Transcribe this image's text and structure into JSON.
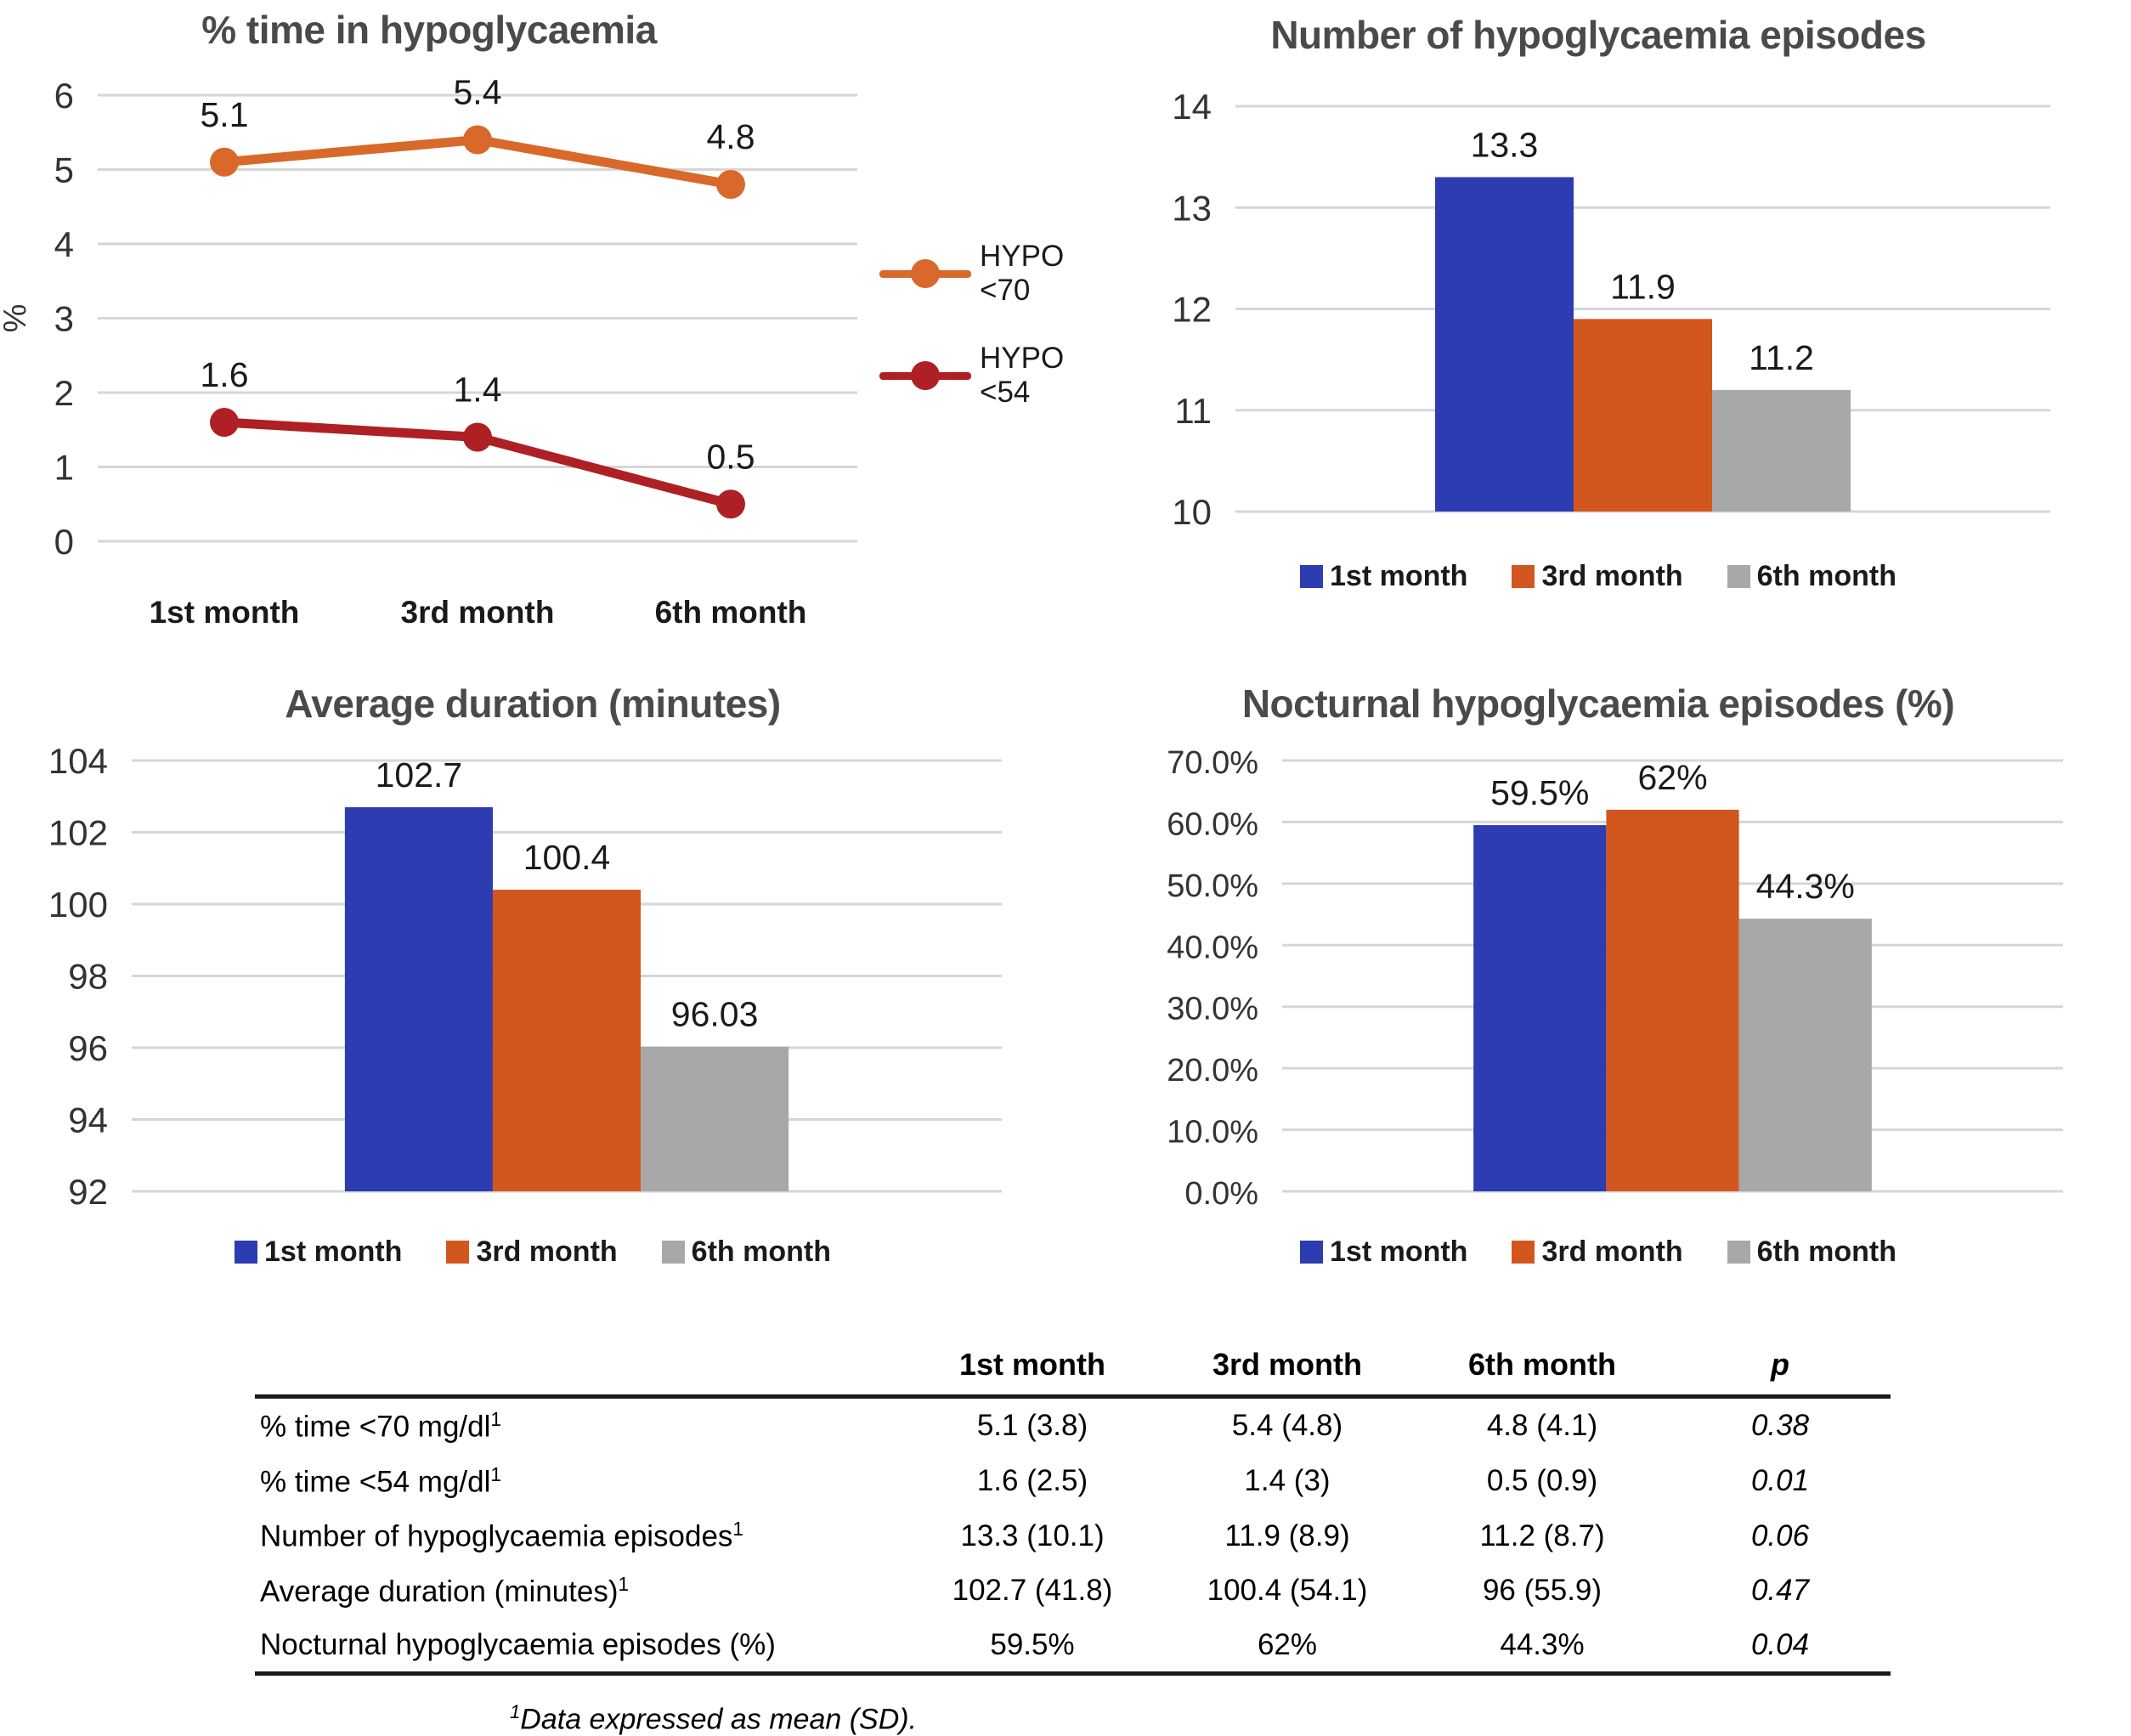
{
  "colors": {
    "series1": "#2D3CB0",
    "series2": "#D1571E",
    "series3": "#A8A8A8",
    "line_hypo70": "#D8692A",
    "line_hypo54": "#AE2024",
    "title_text": "#4A4A4A",
    "grid": "#D6D6D6"
  },
  "chart_data": [
    {
      "type": "line",
      "title": "% time in hypoglycaemia",
      "ylabel": "%",
      "categories": [
        "1st month",
        "3rd month",
        "6th month"
      ],
      "series": [
        {
          "name": "HYPO <70",
          "values": [
            5.1,
            5.4,
            4.8
          ],
          "labels": [
            "5.1",
            "5.4",
            "4.8"
          ],
          "color_key": "line_hypo70"
        },
        {
          "name": "HYPO <54",
          "values": [
            1.6,
            1.4,
            0.5
          ],
          "labels": [
            "1.6",
            "1.4",
            "0.5"
          ],
          "color_key": "line_hypo54"
        }
      ],
      "ylim": [
        0,
        6
      ],
      "yticks": [
        {
          "v": 0,
          "label": "0"
        },
        {
          "v": 1,
          "label": "1"
        },
        {
          "v": 2,
          "label": "2"
        },
        {
          "v": 3,
          "label": "3"
        },
        {
          "v": 4,
          "label": "4"
        },
        {
          "v": 5,
          "label": "5"
        },
        {
          "v": 6,
          "label": "6"
        }
      ],
      "grid": true,
      "legend_position": "right"
    },
    {
      "type": "bar",
      "title": "Number of hypoglycaemia episodes",
      "categories": [
        "1st month",
        "3rd month",
        "6th month"
      ],
      "values": [
        13.3,
        11.9,
        11.2
      ],
      "labels": [
        "13.3",
        "11.9",
        "11.2"
      ],
      "bar_color_keys": [
        "series1",
        "series2",
        "series3"
      ],
      "ylim": [
        10,
        14
      ],
      "yticks": [
        {
          "v": 10,
          "label": "10"
        },
        {
          "v": 11,
          "label": "11"
        },
        {
          "v": 12,
          "label": "12"
        },
        {
          "v": 13,
          "label": "13"
        },
        {
          "v": 14,
          "label": "14"
        }
      ],
      "grid": true,
      "legend_position": "bottom"
    },
    {
      "type": "bar",
      "title": "Average duration (minutes)",
      "categories": [
        "1st month",
        "3rd month",
        "6th month"
      ],
      "values": [
        102.7,
        100.4,
        96.03
      ],
      "labels": [
        "102.7",
        "100.4",
        "96.03"
      ],
      "bar_color_keys": [
        "series1",
        "series2",
        "series3"
      ],
      "ylim": [
        92,
        104
      ],
      "yticks": [
        {
          "v": 92,
          "label": "92"
        },
        {
          "v": 94,
          "label": "94"
        },
        {
          "v": 96,
          "label": "96"
        },
        {
          "v": 98,
          "label": "98"
        },
        {
          "v": 100,
          "label": "100"
        },
        {
          "v": 102,
          "label": "102"
        },
        {
          "v": 104,
          "label": "104"
        }
      ],
      "grid": true,
      "legend_position": "bottom"
    },
    {
      "type": "bar",
      "title": "Nocturnal hypoglycaemia episodes (%)",
      "categories": [
        "1st month",
        "3rd month",
        "6th month"
      ],
      "values": [
        59.5,
        62,
        44.3
      ],
      "labels": [
        "59.5%",
        "62%",
        "44.3%"
      ],
      "bar_color_keys": [
        "series1",
        "series2",
        "series3"
      ],
      "ylim": [
        0,
        70
      ],
      "yticks": [
        {
          "v": 0,
          "label": "0.0%"
        },
        {
          "v": 10,
          "label": "10.0%"
        },
        {
          "v": 20,
          "label": "20.0%"
        },
        {
          "v": 30,
          "label": "30.0%"
        },
        {
          "v": 40,
          "label": "40.0%"
        },
        {
          "v": 50,
          "label": "50.0%"
        },
        {
          "v": 60,
          "label": "60.0%"
        },
        {
          "v": 70,
          "label": "70.0%"
        }
      ],
      "grid": true,
      "legend_position": "bottom"
    }
  ],
  "table": {
    "headers": [
      "",
      "1st month",
      "3rd month",
      "6th month",
      "p"
    ],
    "rows": [
      {
        "label": "% time <70 mg/dl",
        "sup": "1",
        "values": [
          "5.1 (3.8)",
          "5.4 (4.8)",
          "4.8 (4.1)"
        ],
        "p": "0.38"
      },
      {
        "label": "% time <54 mg/dl",
        "sup": "1",
        "values": [
          "1.6 (2.5)",
          "1.4 (3)",
          "0.5 (0.9)"
        ],
        "p": "0.01"
      },
      {
        "label": "Number of hypoglycaemia episodes",
        "sup": "1",
        "values": [
          "13.3 (10.1)",
          "11.9 (8.9)",
          "11.2 (8.7)"
        ],
        "p": "0.06"
      },
      {
        "label": "Average duration (minutes)",
        "sup": "1",
        "values": [
          "102.7 (41.8)",
          "100.4 (54.1)",
          "96 (55.9)"
        ],
        "p": "0.47"
      },
      {
        "label": "Nocturnal hypoglycaemia episodes (%)",
        "sup": "",
        "values": [
          "59.5%",
          "62%",
          "44.3%"
        ],
        "p": "0.04"
      }
    ],
    "footnote_sup": "1",
    "footnote": "Data expressed as mean (SD)."
  }
}
